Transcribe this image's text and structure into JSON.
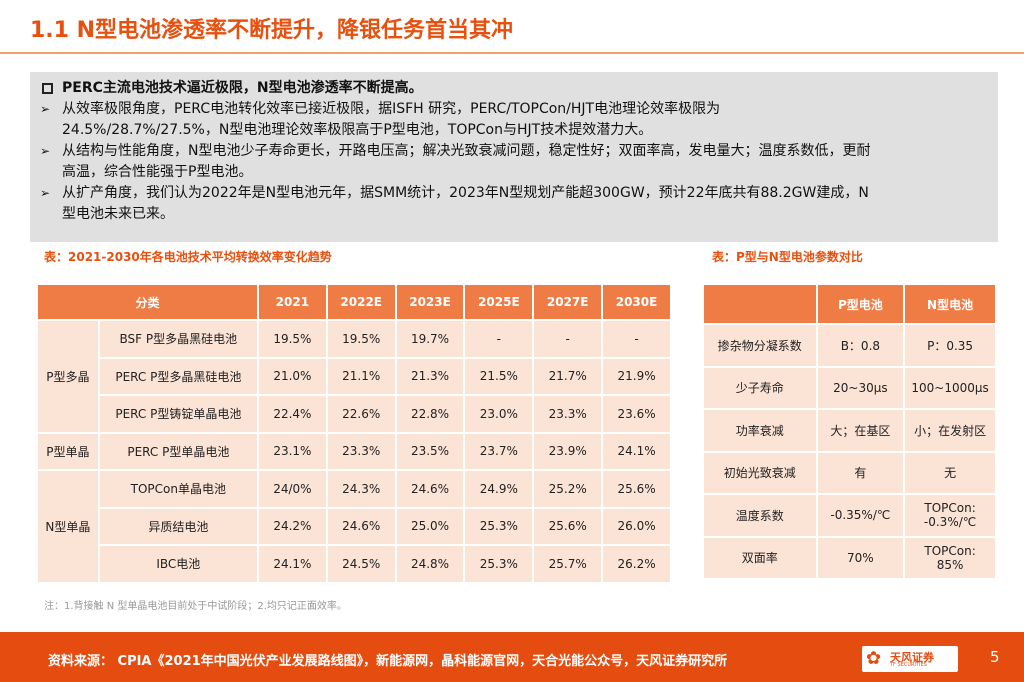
{
  "title": "1.1 N型电池渗透率不断提升，降银任务首当其冲",
  "summary": {
    "headline": "PERC主流电池技术逼近极限，N型电池渗透率不断提高。",
    "bullets": [
      [
        "从效率极限角度，PERC电池转化效率已接近极限，据ISFH 研究，PERC/TOPCon/HJT电池理论效率极限为",
        "24.5%/28.7%/27.5%，N型电池理论效率极限高于P型电池，TOPCon与HJT技术提效潜力大。"
      ],
      [
        "从结构与性能角度，N型电池少子寿命更长，开路电压高；解决光致衰减问题，稳定性好；双面率高，发电量大；温度系数低，更耐",
        "高温，综合性能强于P型电池。"
      ],
      [
        "从扩产角度，我们认为2022年是N型电池元年，据SMM统计，2023年N型规划产能超300GW，预计22年底共有88.2GW建成，N",
        "型电池未来已来。"
      ]
    ]
  },
  "table1": {
    "caption": "表：2021-2030年各电池技术平均转换效率变化趋势",
    "headers": [
      "分类",
      "2021",
      "2022E",
      "2023E",
      "2025E",
      "2027E",
      "2030E"
    ],
    "groups": [
      "P型多晶",
      "P型单晶",
      "N型单晶"
    ],
    "rows": [
      [
        "BSF P型多晶黑硅电池",
        "19.5%",
        "19.5%",
        "19.7%",
        "-",
        "-",
        "-"
      ],
      [
        "PERC P型多晶黑硅电池",
        "21.0%",
        "21.1%",
        "21.3%",
        "21.5%",
        "21.7%",
        "21.9%"
      ],
      [
        "PERC P型铸锭单晶电池",
        "22.4%",
        "22.6%",
        "22.8%",
        "23.0%",
        "23.3%",
        "23.6%"
      ],
      [
        "PERC  P型单晶电池",
        "23.1%",
        "23.3%",
        "23.5%",
        "23.7%",
        "23.9%",
        "24.1%"
      ],
      [
        "TOPCon单晶电池",
        "24/0%",
        "24.3%",
        "24.6%",
        "24.9%",
        "25.2%",
        "25.6%"
      ],
      [
        "异质结电池",
        "24.2%",
        "24.6%",
        "25.0%",
        "25.3%",
        "25.6%",
        "26.0%"
      ],
      [
        "IBC电池",
        "24.1%",
        "24.5%",
        "24.8%",
        "25.3%",
        "25.7%",
        "26.2%"
      ]
    ]
  },
  "table2": {
    "caption": "表：P型与N型电池参数对比",
    "headers": [
      "",
      "P型电池",
      "N型电池"
    ],
    "rows": [
      [
        "掺杂物分凝系数",
        "B：0.8",
        "P：0.35"
      ],
      [
        "少子寿命",
        "20~30μs",
        "100~1000μs"
      ],
      [
        "功率衰减",
        "大；在基区",
        "小；在发射区"
      ],
      [
        "初始光致衰减",
        "有",
        "无"
      ],
      [
        "温度系数",
        "-0.35%/℃",
        "TOPCon:\n-0.3%/℃"
      ],
      [
        "双面率",
        "70%",
        "TOPCon:\n85%"
      ]
    ]
  },
  "note": "注：1.背接触 N 型单晶电池目前处于中试阶段；2.均只记正面效率。",
  "footer": {
    "source": "资料来源：  CPIA《2021年中国光伏产业发展路线图》，新能源网，晶科能源官网，天合光能公众号，天风证券研究所",
    "logo_text": "天风证券",
    "logo_sub": "TF SECURITIES",
    "page": "5"
  }
}
